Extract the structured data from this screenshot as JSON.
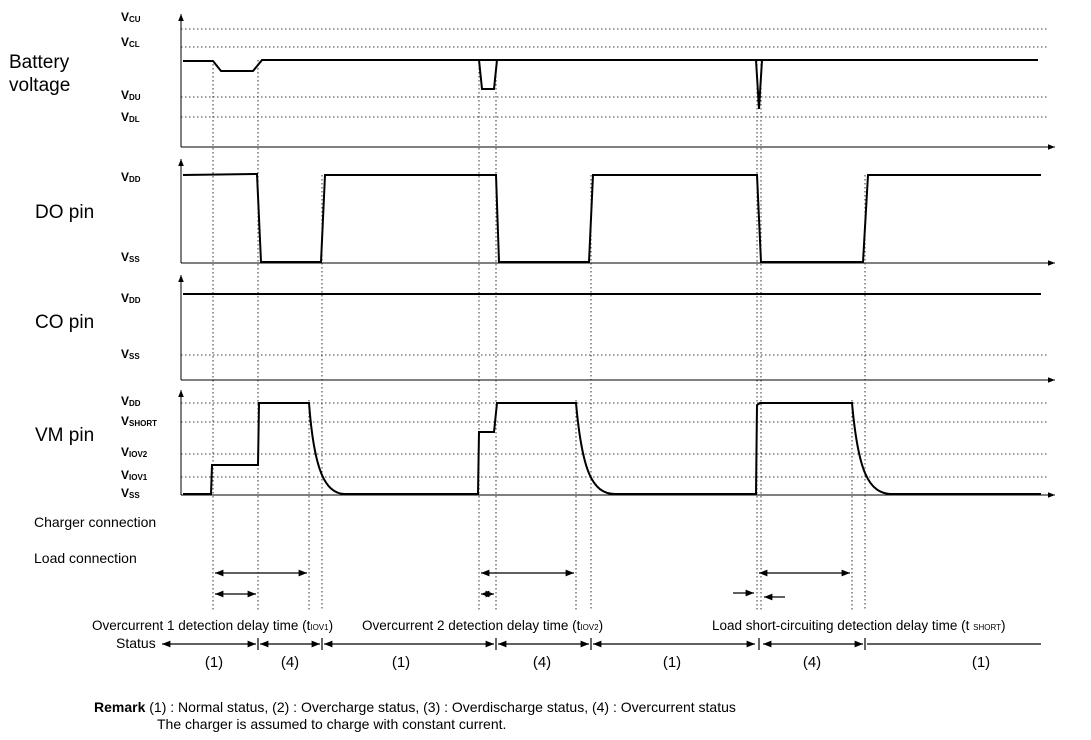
{
  "rows": {
    "battery": {
      "label_line1": "Battery",
      "label_line2": "voltage"
    },
    "do": {
      "label": "DO pin"
    },
    "co": {
      "label": "CO pin"
    },
    "vm": {
      "label": "VM pin"
    }
  },
  "voltage_labels": {
    "vcu": {
      "main": "V",
      "sub": "CU"
    },
    "vcl": {
      "main": "V",
      "sub": "CL"
    },
    "vdu": {
      "main": "V",
      "sub": "DU"
    },
    "vdl": {
      "main": "V",
      "sub": "DL"
    },
    "do_vdd": {
      "main": "V",
      "sub": "DD"
    },
    "do_vss": {
      "main": "V",
      "sub": "SS"
    },
    "co_vdd": {
      "main": "V",
      "sub": "DD"
    },
    "co_vss": {
      "main": "V",
      "sub": "SS"
    },
    "vm_vdd": {
      "main": "V",
      "sub": "DD"
    },
    "vm_vshort": {
      "main": "V",
      "sub": "SHORT"
    },
    "vm_viov2": {
      "main": "V",
      "sub": "IOV2"
    },
    "vm_viov1": {
      "main": "V",
      "sub": "IOV1"
    },
    "vm_vss": {
      "main": "V",
      "sub": "SS"
    }
  },
  "connections": {
    "charger": "Charger connection",
    "load": "Load connection"
  },
  "delay_descriptions": {
    "d1_text": "Overcurrent 1 detection delay time (t",
    "d1_sub": "IOV1",
    "d1_close": ")",
    "d2_text": "Overcurrent 2 detection delay time (t",
    "d2_sub": "IOV2",
    "d2_close": ")",
    "d3_text": "Load short-circuiting detection delay time (t ",
    "d3_sub": "SHORT",
    "d3_close": ")"
  },
  "status": {
    "label": "Status",
    "segments": [
      "(1)",
      "(4)",
      "(1)",
      "(4)",
      "(1)",
      "(4)",
      "(1)"
    ]
  },
  "remark": {
    "title": "Remark",
    "line1": " (1) : Normal status, (2) : Overcharge status, (3) : Overdischarge status, (4) : Overcurrent status",
    "line2": "The charger is assumed to charge with constant current."
  }
}
